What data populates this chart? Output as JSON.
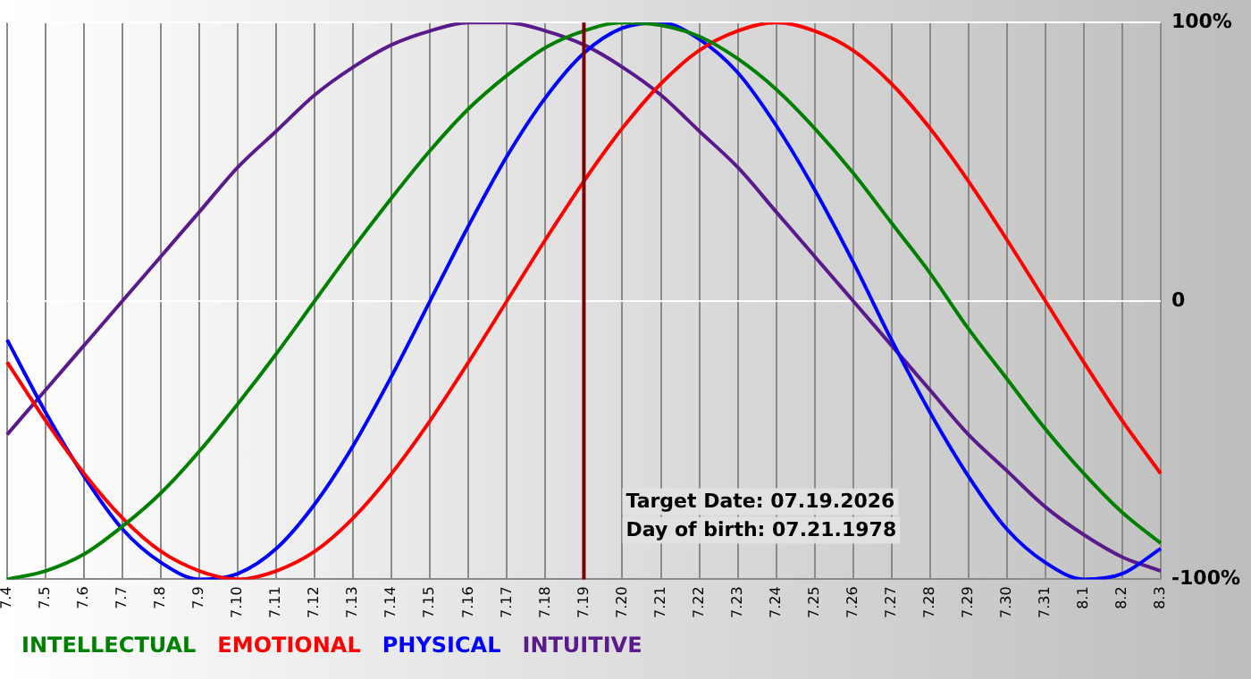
{
  "chart_data": {
    "type": "line",
    "categories": [
      "7.4",
      "7.5",
      "7.6",
      "7.7",
      "7.8",
      "7.9",
      "7.10",
      "7.11",
      "7.12",
      "7.13",
      "7.14",
      "7.15",
      "7.16",
      "7.17",
      "7.18",
      "7.19",
      "7.20",
      "7.21",
      "7.22",
      "7.23",
      "7.24",
      "7.25",
      "7.26",
      "7.27",
      "7.28",
      "7.29",
      "7.30",
      "7.31",
      "8.1",
      "8.2",
      "8.3"
    ],
    "series": [
      {
        "name": "INTELLECTUAL",
        "color": "#008000",
        "values": [
          -100,
          -97,
          -91,
          -81,
          -69,
          -54,
          -37,
          -19,
          0,
          19,
          37,
          54,
          69,
          81,
          91,
          97,
          100,
          99,
          95,
          87,
          76,
          62,
          46,
          28,
          10,
          -10,
          -28,
          -46,
          -62,
          -76,
          -87
        ]
      },
      {
        "name": "EMOTIONAL",
        "color": "#ff0000",
        "values": [
          -22,
          -43,
          -62,
          -78,
          -90,
          -97,
          -100,
          -97,
          -90,
          -78,
          -62,
          -43,
          -22,
          0,
          22,
          43,
          62,
          78,
          90,
          97,
          100,
          97,
          90,
          78,
          62,
          43,
          22,
          0,
          -22,
          -43,
          -62
        ]
      },
      {
        "name": "PHYSICAL",
        "color": "#0000ff",
        "values": [
          -14,
          -40,
          -63,
          -82,
          -94,
          -100,
          -98,
          -89,
          -73,
          -52,
          -27,
          0,
          27,
          52,
          73,
          89,
          98,
          100,
          94,
          82,
          63,
          40,
          14,
          -14,
          -40,
          -63,
          -82,
          -94,
          -100,
          -98,
          -89
        ]
      },
      {
        "name": "INTUITIVE",
        "color": "#5a1a8c",
        "values": [
          -48,
          -32,
          -16,
          0,
          16,
          32,
          48,
          61,
          74,
          84,
          92,
          97,
          100,
          100,
          97,
          92,
          84,
          74,
          61,
          48,
          32,
          16,
          0,
          -16,
          -32,
          -48,
          -61,
          -74,
          -84,
          -92,
          -97
        ]
      }
    ],
    "ylim": [
      -100,
      100
    ],
    "yticks": [
      {
        "value": -100,
        "label": "-100%"
      },
      0,
      {
        "value": 100,
        "label": "100%"
      }
    ],
    "grid": true,
    "legend": "bottom left",
    "marker": "none",
    "line_style": "solid",
    "ref_lines": [
      {
        "axis": "x",
        "value": "7.19",
        "color": "#800000"
      }
    ],
    "annotations": [
      "Target Date: 07.19.2026",
      "Day of birth: 07.21.1978"
    ]
  }
}
